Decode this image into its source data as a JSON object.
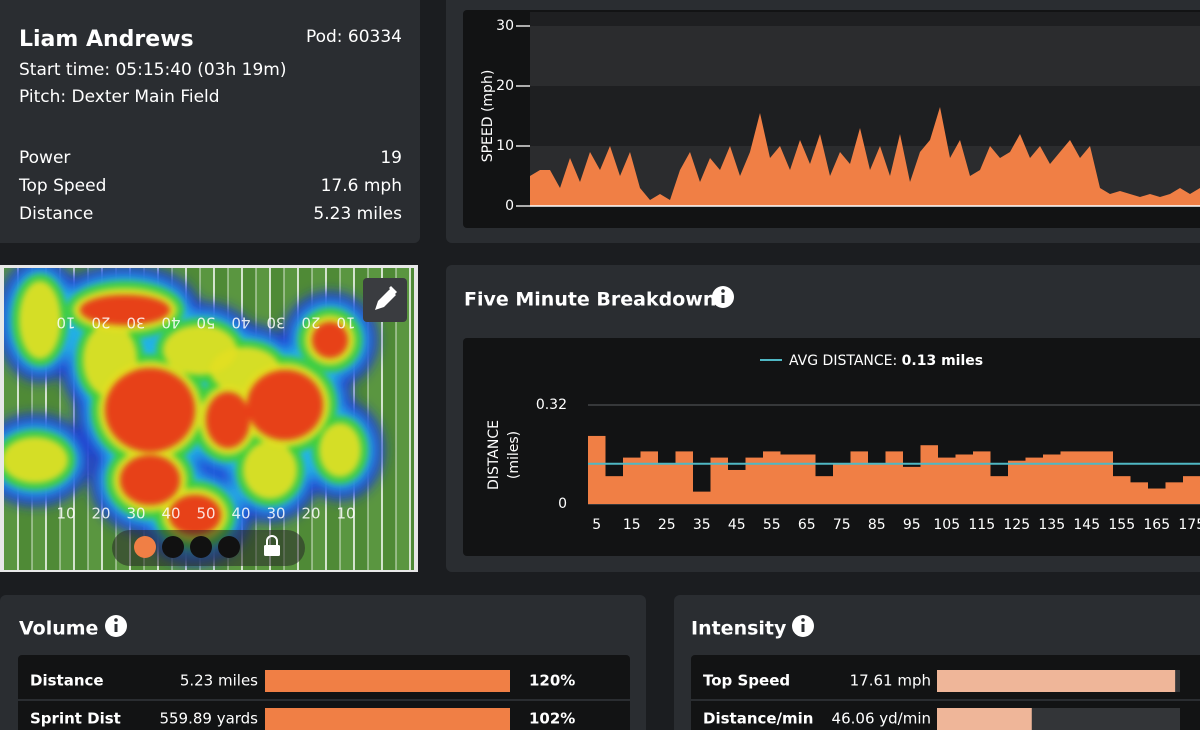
{
  "player": {
    "name": "Liam Andrews",
    "pod": "Pod: 60334",
    "start_time": "Start time: 05:15:40 (03h 19m)",
    "pitch": "Pitch: Dexter Main Field",
    "stats": [
      {
        "label": "Power",
        "value": "19"
      },
      {
        "label": "Top Speed",
        "value": "17.6 mph"
      },
      {
        "label": "Distance",
        "value": "5.23 miles"
      }
    ]
  },
  "speed_chart": {
    "type": "area",
    "y_label": "SPEED (mph)",
    "ylim": [
      0,
      30
    ],
    "yticks": [
      0,
      10,
      20,
      30
    ],
    "color": "#f07f45",
    "values": [
      5,
      6,
      6,
      3,
      8,
      4,
      9,
      6,
      10,
      5,
      9,
      3,
      1,
      2,
      1,
      6,
      9,
      4,
      8,
      6,
      10,
      5,
      9,
      15.5,
      8,
      10,
      6,
      11,
      7,
      12,
      5,
      9,
      7,
      13,
      6,
      10,
      5,
      12,
      4,
      9,
      11,
      16.5,
      8,
      11,
      5,
      6,
      10,
      8,
      9,
      12,
      8,
      10,
      7,
      9,
      11,
      8,
      10,
      3,
      2,
      2.5,
      2,
      1.5,
      2,
      1.5,
      2,
      3,
      2,
      3
    ]
  },
  "heatmap": {
    "yard_numbers": [
      10,
      20,
      30,
      40,
      50,
      40,
      30,
      20,
      10
    ]
  },
  "breakdown": {
    "type": "bar",
    "title": "Five Minute Breakdown",
    "legend_label": "AVG DISTANCE:",
    "average": 0.13,
    "average_label": "0.13 miles",
    "average_color": "#4fb8c4",
    "y_label": [
      "DISTANCE",
      "(miles)"
    ],
    "ylim": [
      0,
      0.32
    ],
    "yticks": [
      0,
      0.32
    ],
    "color": "#f07f45",
    "categories": [
      5,
      null,
      15,
      null,
      25,
      null,
      35,
      null,
      45,
      null,
      55,
      null,
      65,
      null,
      75,
      null,
      85,
      null,
      95,
      null,
      105,
      null,
      115,
      null,
      125,
      null,
      135,
      null,
      145,
      null,
      155,
      null,
      165,
      null,
      175
    ],
    "values": [
      0.22,
      0.09,
      0.15,
      0.17,
      0.13,
      0.17,
      0.04,
      0.15,
      0.11,
      0.15,
      0.17,
      0.16,
      0.16,
      0.09,
      0.13,
      0.17,
      0.13,
      0.17,
      0.12,
      0.19,
      0.15,
      0.16,
      0.17,
      0.09,
      0.14,
      0.15,
      0.16,
      0.17,
      0.17,
      0.17,
      0.09,
      0.07,
      0.05,
      0.07,
      0.09
    ]
  },
  "volume": {
    "title": "Volume",
    "color": "#f07f45",
    "rows": [
      {
        "label": "Distance",
        "value": "5.23 miles",
        "percent": 120,
        "percent_label": "120%"
      },
      {
        "label": "Sprint Dist",
        "value": "559.89 yards",
        "percent": 102,
        "percent_label": "102%"
      }
    ]
  },
  "intensity": {
    "title": "Intensity",
    "color": "#efb699",
    "rows": [
      {
        "label": "Top Speed",
        "value": "17.61 mph",
        "percent": 98
      },
      {
        "label": "Distance/min",
        "value": "46.06 yd/min",
        "percent": 39
      }
    ]
  }
}
